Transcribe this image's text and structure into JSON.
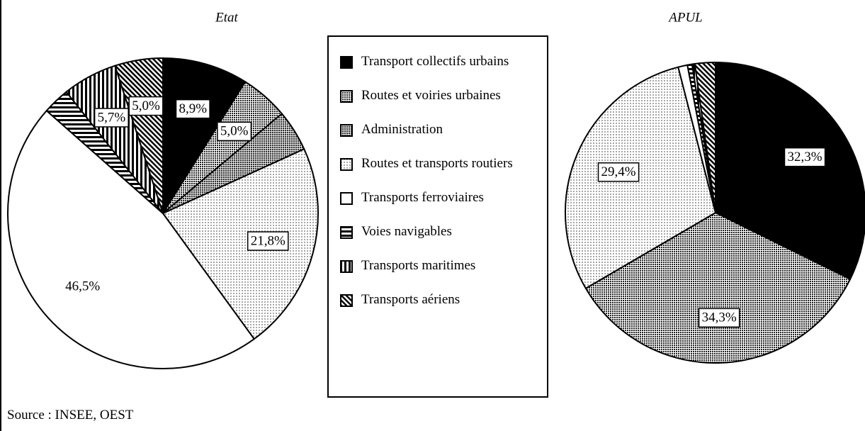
{
  "chart_data": {
    "type": "pie",
    "categories": [
      "Transport collectifs urbains",
      "Routes et voiries urbaines",
      "Administration",
      "Routes et transports routiers",
      "Transports ferroviaires",
      "Voies navigables",
      "Transports maritimes",
      "Transports aériens"
    ],
    "colors": [
      "#000000",
      "#222222",
      "#333333",
      "#666666",
      "#ffffff",
      "#000000",
      "#000000",
      "#000000"
    ],
    "series": [
      {
        "name": "Etat",
        "values": [
          8.9,
          5.0,
          4.3,
          21.8,
          46.5,
          2.8,
          5.7,
          5.0
        ],
        "value_labels": [
          "8,9%",
          "5,0%",
          null,
          "21,8%",
          "46,5%",
          null,
          "5,7%",
          "5,0%"
        ]
      },
      {
        "name": "APUL",
        "values": [
          32.3,
          34.3,
          0,
          29.4,
          1.0,
          0.5,
          0.3,
          2.2
        ],
        "value_labels": [
          "32,3%",
          "34,3%",
          null,
          "29,4%",
          null,
          null,
          null,
          null
        ]
      }
    ],
    "source": "Source : INSEE, OEST"
  }
}
